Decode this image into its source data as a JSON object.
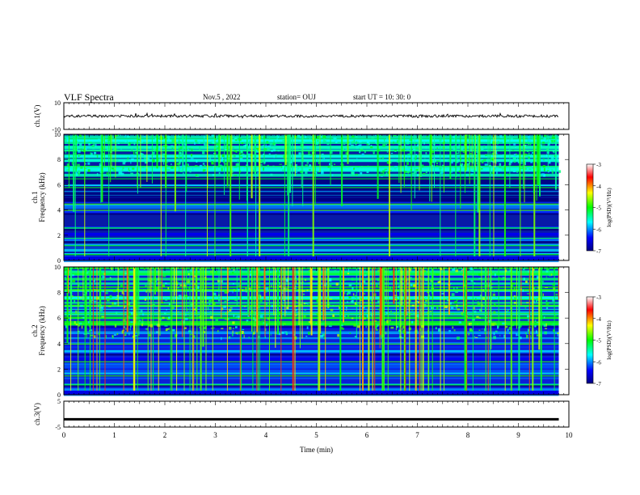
{
  "header": {
    "title": "VLF Spectra",
    "date": "Nov.5 , 2022",
    "station": "station= OUJ",
    "start": "start UT = 10: 30: 0"
  },
  "chart_data": [
    {
      "type": "line",
      "panel": "ch1-waveform",
      "ylabel": "ch.1(V)",
      "ylim": [
        -10,
        10
      ],
      "yticks": [
        "10",
        "-10"
      ],
      "xlim": [
        0,
        10
      ],
      "trace_level_V": 0.0,
      "trace_end_min": 9.8
    },
    {
      "type": "heatmap",
      "panel": "ch1-spectrogram",
      "ylabel": "ch.1\nFrequency (kHz)",
      "ylim": [
        0,
        10
      ],
      "yticks": [
        "0",
        "2",
        "4",
        "6",
        "8",
        "10"
      ],
      "xlim": [
        0,
        10
      ],
      "data_end_min": 9.8,
      "colorbar": {
        "label": "log(PSD)(V²/Hz)",
        "range": [
          -7,
          -3
        ],
        "ticks": [
          "-3",
          "-4",
          "-5",
          "-6",
          "-7"
        ]
      }
    },
    {
      "type": "heatmap",
      "panel": "ch2-spectrogram",
      "ylabel": "ch.2\nFrequency (kHz)",
      "ylim": [
        0,
        10
      ],
      "yticks": [
        "0",
        "2",
        "4",
        "6",
        "8",
        "10"
      ],
      "xlim": [
        0,
        10
      ],
      "data_end_min": 9.8,
      "colorbar": {
        "label": "log(PSD)(V²/Hz)",
        "range": [
          -7,
          -3
        ],
        "ticks": [
          "-3",
          "-4",
          "-5",
          "-6",
          "-7"
        ]
      }
    },
    {
      "type": "line",
      "panel": "ch3-waveform",
      "ylabel": "ch.3(V)",
      "ylim": [
        -5,
        5
      ],
      "yticks": [
        "5",
        "-5"
      ],
      "xlim": [
        0,
        10
      ],
      "trace_level_V": -2.0,
      "trace_end_min": 9.8,
      "xlabel": "Time (min)",
      "xticks": [
        "0",
        "1",
        "2",
        "3",
        "4",
        "5",
        "6",
        "7",
        "8",
        "9",
        "10"
      ]
    }
  ]
}
